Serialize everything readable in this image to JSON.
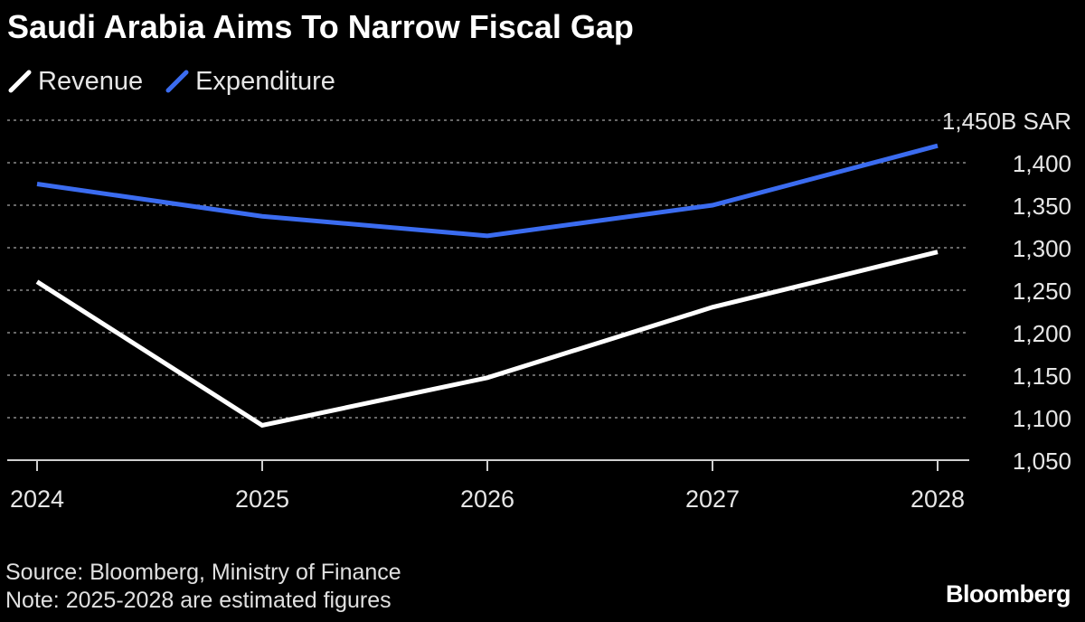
{
  "title": "Saudi Arabia Aims To Narrow Fiscal Gap",
  "legend": [
    {
      "label": "Revenue",
      "color": "#ffffff",
      "icon": "slash-icon"
    },
    {
      "label": "Expenditure",
      "color": "#3b6cf0",
      "icon": "slash-icon"
    }
  ],
  "chart_data": {
    "type": "line",
    "x": [
      "2024",
      "2025",
      "2026",
      "2027",
      "2028"
    ],
    "series": [
      {
        "name": "Revenue",
        "color": "#ffffff",
        "values": [
          1260,
          1091,
          1147,
          1230,
          1295
        ]
      },
      {
        "name": "Expenditure",
        "color": "#3b6cf0",
        "values": [
          1375,
          1337,
          1314,
          1350,
          1420
        ]
      }
    ],
    "ylim": [
      1050,
      1450
    ],
    "yticks": [
      1050,
      1100,
      1150,
      1200,
      1250,
      1300,
      1350,
      1400,
      1450
    ],
    "ytick_labels": [
      "1,050",
      "1,100",
      "1,150",
      "1,200",
      "1,250",
      "1,300",
      "1,350",
      "1,400",
      "1,450B SAR"
    ],
    "y_axis_side": "right",
    "grid": true,
    "legend_position": "top-left"
  },
  "footer": {
    "source": "Source: Bloomberg, Ministry of Finance",
    "note": "Note: 2025-2028 are estimated figures"
  },
  "brand": "Bloomberg"
}
